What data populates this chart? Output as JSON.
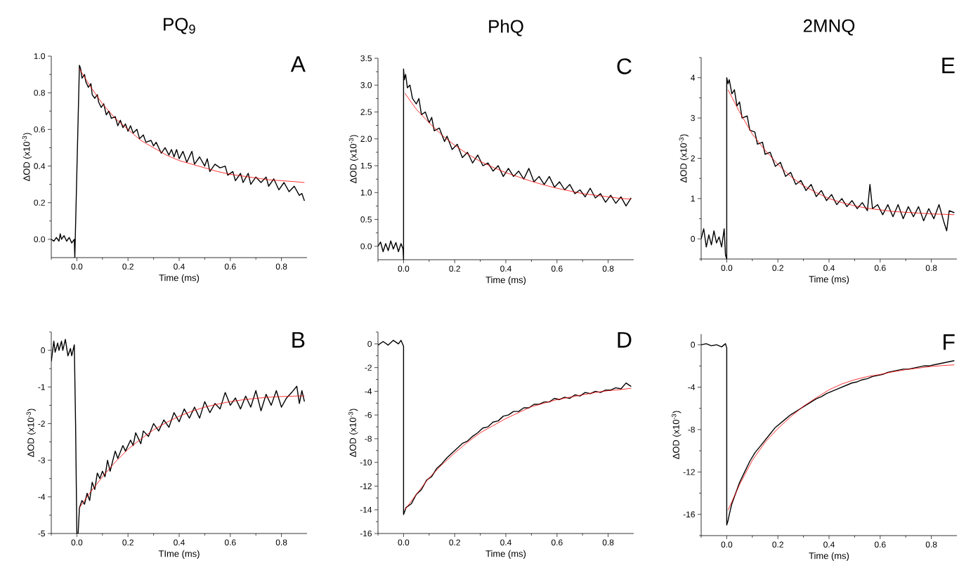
{
  "chart_data": [
    {
      "type": "line",
      "title": "PQ$_{9}$",
      "annotations": [
        "A"
      ],
      "xlabel": "Time (ms)",
      "ylabel": "ΔOD (x10$^{-3}$)",
      "marker": "none",
      "line_style": "solid",
      "xlim": [
        -0.1,
        0.9
      ],
      "ylim": [
        -0.1,
        1.0
      ],
      "xticks": [
        {
          "value": -0.1,
          "label": null
        },
        {
          "value": 0,
          "label": "0.0"
        },
        {
          "value": 0.1,
          "label": null
        },
        0.2,
        {
          "value": 0.3,
          "label": null
        },
        0.4,
        {
          "value": 0.5,
          "label": null
        },
        0.6,
        {
          "value": 0.7,
          "label": null
        },
        0.8
      ],
      "yticks": [
        {
          "value": 0,
          "label": "0.0"
        },
        {
          "value": 0.1,
          "label": null
        },
        0.2,
        {
          "value": 0.3,
          "label": null
        },
        0.4,
        {
          "value": 0.5,
          "label": null
        },
        0.6,
        {
          "value": 0.7,
          "label": null
        },
        0.8,
        {
          "value": 0.9,
          "label": null
        },
        {
          "value": 1.0,
          "label": "1.0"
        }
      ],
      "series": [
        {
          "color": "#000000",
          "x": [
            -0.1,
            -0.09,
            -0.08,
            -0.07,
            -0.065,
            -0.06,
            -0.05,
            -0.04,
            -0.03,
            -0.02,
            -0.01,
            -0.008,
            0.01,
            0.015,
            0.02,
            0.03,
            0.035,
            0.045,
            0.055,
            0.06,
            0.07,
            0.08,
            0.085,
            0.095,
            0.105,
            0.115,
            0.125,
            0.135,
            0.15,
            0.16,
            0.17,
            0.18,
            0.19,
            0.2,
            0.21,
            0.22,
            0.235,
            0.245,
            0.26,
            0.27,
            0.29,
            0.3,
            0.31,
            0.33,
            0.345,
            0.36,
            0.37,
            0.38,
            0.39,
            0.4,
            0.415,
            0.43,
            0.45,
            0.46,
            0.48,
            0.5,
            0.51,
            0.52,
            0.54,
            0.56,
            0.58,
            0.59,
            0.61,
            0.62,
            0.64,
            0.65,
            0.67,
            0.68,
            0.7,
            0.72,
            0.74,
            0.75,
            0.77,
            0.79,
            0.81,
            0.83,
            0.85,
            0.87,
            0.88,
            0.89
          ],
          "values": [
            0.0,
            -0.01,
            0.01,
            -0.01,
            0.03,
            0.0,
            0.02,
            -0.01,
            0.01,
            -0.02,
            0.0,
            -0.1,
            0.95,
            0.93,
            0.88,
            0.9,
            0.86,
            0.83,
            0.85,
            0.79,
            0.77,
            0.79,
            0.75,
            0.72,
            0.74,
            0.68,
            0.7,
            0.66,
            0.67,
            0.62,
            0.65,
            0.61,
            0.63,
            0.59,
            0.62,
            0.58,
            0.6,
            0.55,
            0.57,
            0.53,
            0.54,
            0.51,
            0.53,
            0.47,
            0.5,
            0.46,
            0.49,
            0.45,
            0.49,
            0.44,
            0.48,
            0.42,
            0.48,
            0.41,
            0.45,
            0.4,
            0.44,
            0.37,
            0.41,
            0.39,
            0.4,
            0.35,
            0.37,
            0.32,
            0.36,
            0.31,
            0.36,
            0.3,
            0.34,
            0.31,
            0.34,
            0.29,
            0.33,
            0.27,
            0.31,
            0.26,
            0.29,
            0.24,
            0.25,
            0.21
          ]
        },
        {
          "color": "#ff0000",
          "x": [
            0.01,
            0.05,
            0.1,
            0.15,
            0.2,
            0.25,
            0.3,
            0.35,
            0.4,
            0.45,
            0.5,
            0.55,
            0.6,
            0.65,
            0.7,
            0.75,
            0.8,
            0.85,
            0.89
          ],
          "values": [
            0.93,
            0.84,
            0.74,
            0.66,
            0.6,
            0.54,
            0.5,
            0.46,
            0.43,
            0.41,
            0.39,
            0.37,
            0.355,
            0.345,
            0.335,
            0.325,
            0.32,
            0.315,
            0.31
          ]
        }
      ]
    },
    {
      "type": "line",
      "title": "PhQ",
      "annotations": [
        "C"
      ],
      "xlabel": "Time (ms)",
      "ylabel": "ΔOD (x10$^{-3}$)",
      "marker": "none",
      "line_style": "solid",
      "xlim": [
        -0.1,
        0.9
      ],
      "ylim": [
        -0.25,
        3.5
      ],
      "xticks": [
        {
          "value": -0.1,
          "label": null
        },
        {
          "value": 0,
          "label": "0.0"
        },
        {
          "value": 0.1,
          "label": null
        },
        0.2,
        {
          "value": 0.3,
          "label": null
        },
        0.4,
        {
          "value": 0.5,
          "label": null
        },
        0.6,
        {
          "value": 0.7,
          "label": null
        },
        0.8
      ],
      "yticks": [
        {
          "value": 0,
          "label": "0.0"
        },
        {
          "value": 0.25,
          "label": null
        },
        0.5,
        {
          "value": 0.75,
          "label": null
        },
        {
          "value": 1.0,
          "label": "1.0"
        },
        {
          "value": 1.25,
          "label": null
        },
        1.5,
        {
          "value": 1.75,
          "label": null
        },
        {
          "value": 2.0,
          "label": "2.0"
        },
        {
          "value": 2.25,
          "label": null
        },
        2.5,
        {
          "value": 2.75,
          "label": null
        },
        {
          "value": 3.0,
          "label": "3.0"
        },
        {
          "value": 3.25,
          "label": null
        },
        3.5
      ],
      "series": [
        {
          "color": "#000000",
          "x": [
            -0.1,
            -0.09,
            -0.08,
            -0.07,
            -0.06,
            -0.05,
            -0.04,
            -0.03,
            -0.02,
            -0.01,
            -0.002,
            0,
            0,
            0.003,
            0.008,
            0.015,
            0.025,
            0.035,
            0.05,
            0.06,
            0.07,
            0.085,
            0.1,
            0.11,
            0.12,
            0.14,
            0.16,
            0.17,
            0.19,
            0.21,
            0.23,
            0.25,
            0.27,
            0.29,
            0.31,
            0.33,
            0.35,
            0.37,
            0.39,
            0.41,
            0.43,
            0.45,
            0.47,
            0.49,
            0.51,
            0.53,
            0.55,
            0.57,
            0.59,
            0.61,
            0.63,
            0.65,
            0.67,
            0.69,
            0.71,
            0.73,
            0.75,
            0.77,
            0.79,
            0.81,
            0.83,
            0.85,
            0.87,
            0.89
          ],
          "values": [
            0.0,
            0.08,
            -0.1,
            0.05,
            -0.08,
            0.1,
            -0.05,
            0.07,
            -0.1,
            0.05,
            -0.05,
            -0.25,
            3.3,
            3.1,
            3.2,
            2.95,
            3.0,
            2.75,
            2.65,
            2.75,
            2.45,
            2.5,
            2.3,
            2.4,
            2.15,
            2.2,
            1.95,
            2.05,
            1.8,
            1.9,
            1.65,
            1.75,
            1.55,
            1.7,
            1.5,
            1.55,
            1.4,
            1.5,
            1.3,
            1.45,
            1.3,
            1.4,
            1.25,
            1.45,
            1.2,
            1.3,
            1.15,
            1.3,
            1.1,
            1.2,
            1.05,
            1.15,
            0.98,
            1.05,
            0.92,
            1.08,
            0.9,
            0.98,
            0.82,
            0.95,
            0.8,
            0.92,
            0.75,
            0.9
          ]
        },
        {
          "color": "#ff0000",
          "x": [
            0.005,
            0.05,
            0.1,
            0.15,
            0.2,
            0.25,
            0.3,
            0.35,
            0.4,
            0.45,
            0.5,
            0.55,
            0.6,
            0.65,
            0.7,
            0.75,
            0.8,
            0.85,
            0.89
          ],
          "values": [
            2.85,
            2.55,
            2.3,
            2.07,
            1.88,
            1.72,
            1.58,
            1.47,
            1.37,
            1.29,
            1.21,
            1.14,
            1.08,
            1.03,
            0.98,
            0.95,
            0.92,
            0.89,
            0.88
          ]
        }
      ]
    },
    {
      "type": "line",
      "title": "2MNQ",
      "annotations": [
        "E"
      ],
      "xlabel": "Time (ms)",
      "ylabel": "ΔOD (x10$^{-3}$)",
      "marker": "none",
      "line_style": "solid",
      "xlim": [
        -0.1,
        0.9
      ],
      "ylim": [
        -0.5,
        4.5
      ],
      "xticks": [
        {
          "value": -0.1,
          "label": null
        },
        {
          "value": 0,
          "label": "0.0"
        },
        {
          "value": 0.1,
          "label": null
        },
        0.2,
        {
          "value": 0.3,
          "label": null
        },
        0.4,
        {
          "value": 0.5,
          "label": null
        },
        0.6,
        {
          "value": 0.7,
          "label": null
        },
        0.8
      ],
      "yticks": [
        {
          "value": -0.5,
          "label": null
        },
        0,
        {
          "value": 0.5,
          "label": null
        },
        1,
        {
          "value": 1.5,
          "label": null
        },
        2,
        {
          "value": 2.5,
          "label": null
        },
        3,
        {
          "value": 3.5,
          "label": null
        },
        4,
        {
          "value": 4.5,
          "label": null
        }
      ],
      "series": [
        {
          "color": "#000000",
          "x": [
            -0.1,
            -0.09,
            -0.08,
            -0.07,
            -0.06,
            -0.05,
            -0.04,
            -0.03,
            -0.02,
            -0.01,
            -0.005,
            0,
            0,
            0.005,
            0.01,
            0.02,
            0.03,
            0.04,
            0.05,
            0.06,
            0.08,
            0.09,
            0.11,
            0.12,
            0.14,
            0.15,
            0.17,
            0.19,
            0.21,
            0.23,
            0.25,
            0.27,
            0.29,
            0.31,
            0.33,
            0.35,
            0.37,
            0.39,
            0.41,
            0.43,
            0.45,
            0.47,
            0.49,
            0.51,
            0.53,
            0.55,
            0.56,
            0.57,
            0.59,
            0.61,
            0.63,
            0.65,
            0.67,
            0.69,
            0.71,
            0.73,
            0.75,
            0.77,
            0.79,
            0.81,
            0.83,
            0.85,
            0.86,
            0.87,
            0.89
          ],
          "values": [
            0.0,
            0.25,
            -0.2,
            0.1,
            -0.15,
            0.2,
            -0.1,
            0.05,
            -0.2,
            0.25,
            -0.4,
            -0.5,
            4.0,
            3.85,
            3.95,
            3.6,
            3.7,
            3.3,
            3.4,
            3.0,
            3.05,
            2.7,
            2.65,
            2.35,
            2.4,
            2.1,
            2.15,
            1.8,
            1.9,
            1.55,
            1.65,
            1.35,
            1.45,
            1.2,
            1.35,
            1.05,
            1.2,
            0.95,
            1.1,
            0.85,
            1.0,
            0.8,
            0.95,
            0.75,
            0.9,
            0.7,
            1.35,
            0.75,
            0.85,
            0.6,
            0.85,
            0.55,
            0.85,
            0.5,
            0.8,
            0.55,
            0.8,
            0.45,
            0.75,
            0.5,
            0.85,
            0.4,
            0.2,
            0.7,
            0.65
          ]
        },
        {
          "color": "#ff0000",
          "x": [
            0.005,
            0.05,
            0.1,
            0.15,
            0.2,
            0.25,
            0.3,
            0.35,
            0.4,
            0.45,
            0.5,
            0.55,
            0.6,
            0.65,
            0.7,
            0.75,
            0.8,
            0.85,
            0.89
          ],
          "values": [
            3.7,
            3.15,
            2.6,
            2.2,
            1.85,
            1.55,
            1.32,
            1.15,
            1.0,
            0.9,
            0.82,
            0.76,
            0.72,
            0.68,
            0.66,
            0.64,
            0.62,
            0.61,
            0.6
          ]
        }
      ]
    },
    {
      "type": "line",
      "annotations": [
        "B"
      ],
      "xlabel": "TIme (ms)",
      "ylabel": "ΔOD (x10$^{-3}$)",
      "marker": "none",
      "line_style": "solid",
      "xlim": [
        -0.1,
        0.9
      ],
      "ylim": [
        -5,
        0.5
      ],
      "xticks": [
        {
          "value": -0.1,
          "label": null
        },
        {
          "value": 0,
          "label": "0.0"
        },
        {
          "value": 0.1,
          "label": null
        },
        0.2,
        {
          "value": 0.3,
          "label": null
        },
        0.4,
        {
          "value": 0.5,
          "label": null
        },
        0.6,
        {
          "value": 0.7,
          "label": null
        },
        0.8
      ],
      "yticks": [
        -5,
        {
          "value": -4.5,
          "label": null
        },
        -4,
        {
          "value": -3.5,
          "label": null
        },
        -3,
        {
          "value": -2.5,
          "label": null
        },
        -2,
        {
          "value": -1.5,
          "label": null
        },
        -1,
        {
          "value": -0.5,
          "label": null
        },
        0,
        {
          "value": 0.5,
          "label": null
        }
      ],
      "series": [
        {
          "color": "#000000",
          "x": [
            -0.1,
            -0.09,
            -0.085,
            -0.075,
            -0.07,
            -0.06,
            -0.055,
            -0.045,
            -0.035,
            -0.025,
            -0.02,
            -0.01,
            -0.005,
            0,
            0.005,
            0.01,
            0.02,
            0.03,
            0.04,
            0.05,
            0.06,
            0.07,
            0.08,
            0.09,
            0.1,
            0.11,
            0.12,
            0.13,
            0.15,
            0.16,
            0.18,
            0.19,
            0.21,
            0.22,
            0.23,
            0.25,
            0.26,
            0.28,
            0.3,
            0.32,
            0.34,
            0.36,
            0.38,
            0.4,
            0.42,
            0.44,
            0.46,
            0.48,
            0.5,
            0.52,
            0.54,
            0.56,
            0.58,
            0.6,
            0.62,
            0.64,
            0.66,
            0.68,
            0.7,
            0.72,
            0.74,
            0.76,
            0.78,
            0.8,
            0.82,
            0.84,
            0.86,
            0.87,
            0.88,
            0.89
          ],
          "values": [
            -0.3,
            0.25,
            -0.05,
            0.2,
            0.0,
            0.25,
            0.0,
            0.3,
            -0.15,
            0.05,
            -0.15,
            0.15,
            -2.0,
            -5.0,
            -5.0,
            -4.3,
            -4.1,
            -4.2,
            -3.9,
            -4.1,
            -3.6,
            -3.8,
            -3.35,
            -3.5,
            -3.3,
            -3.45,
            -3.0,
            -3.3,
            -2.75,
            -2.95,
            -2.6,
            -2.75,
            -2.45,
            -2.6,
            -2.25,
            -2.55,
            -2.2,
            -2.35,
            -2.0,
            -2.2,
            -1.9,
            -2.1,
            -1.7,
            -1.95,
            -1.6,
            -1.85,
            -1.55,
            -1.85,
            -1.4,
            -1.7,
            -1.45,
            -1.6,
            -1.15,
            -1.5,
            -1.3,
            -1.6,
            -1.25,
            -1.55,
            -1.1,
            -1.65,
            -1.2,
            -1.5,
            -1.1,
            -1.55,
            -1.3,
            -1.15,
            -0.98,
            -1.45,
            -1.1,
            -1.4
          ]
        },
        {
          "color": "#ff0000",
          "x": [
            0.01,
            0.05,
            0.1,
            0.15,
            0.2,
            0.25,
            0.3,
            0.35,
            0.4,
            0.45,
            0.5,
            0.55,
            0.6,
            0.65,
            0.7,
            0.75,
            0.8,
            0.85,
            0.89
          ],
          "values": [
            -4.3,
            -3.9,
            -3.45,
            -3.05,
            -2.7,
            -2.42,
            -2.17,
            -1.97,
            -1.8,
            -1.66,
            -1.55,
            -1.47,
            -1.4,
            -1.35,
            -1.31,
            -1.28,
            -1.26,
            -1.25,
            -1.24
          ]
        }
      ]
    },
    {
      "type": "line",
      "annotations": [
        "D"
      ],
      "xlabel": "Time (ms)",
      "ylabel": "ΔOD (x10$^{-3}$)",
      "marker": "none",
      "line_style": "solid",
      "xlim": [
        -0.1,
        0.9
      ],
      "ylim": [
        -16,
        1
      ],
      "xticks": [
        {
          "value": -0.1,
          "label": null
        },
        {
          "value": 0,
          "label": "0.0"
        },
        {
          "value": 0.1,
          "label": null
        },
        0.2,
        {
          "value": 0.3,
          "label": null
        },
        0.4,
        {
          "value": 0.5,
          "label": null
        },
        0.6,
        {
          "value": 0.7,
          "label": null
        },
        0.8
      ],
      "yticks": [
        -16,
        {
          "value": -15,
          "label": null
        },
        -14,
        {
          "value": -13,
          "label": null
        },
        -12,
        {
          "value": -11,
          "label": null
        },
        -10,
        {
          "value": -9,
          "label": null
        },
        -8,
        {
          "value": -7,
          "label": null
        },
        -6,
        {
          "value": -5,
          "label": null
        },
        -4,
        {
          "value": -3,
          "label": null
        },
        -2,
        {
          "value": -1,
          "label": null
        },
        0,
        {
          "value": 1,
          "label": null
        }
      ],
      "series": [
        {
          "color": "#000000",
          "x": [
            -0.1,
            -0.08,
            -0.06,
            -0.04,
            -0.02,
            -0.01,
            0,
            0,
            0.01,
            0.03,
            0.05,
            0.07,
            0.09,
            0.11,
            0.13,
            0.15,
            0.17,
            0.19,
            0.21,
            0.23,
            0.25,
            0.27,
            0.29,
            0.31,
            0.33,
            0.35,
            0.37,
            0.39,
            0.41,
            0.43,
            0.45,
            0.47,
            0.49,
            0.51,
            0.53,
            0.55,
            0.57,
            0.59,
            0.61,
            0.63,
            0.65,
            0.67,
            0.69,
            0.71,
            0.73,
            0.75,
            0.77,
            0.79,
            0.81,
            0.83,
            0.85,
            0.87,
            0.89
          ],
          "values": [
            -0.1,
            0.2,
            -0.1,
            0.3,
            0.0,
            0.3,
            -0.2,
            -14.4,
            -13.8,
            -13.5,
            -12.7,
            -12.3,
            -11.5,
            -11.2,
            -10.5,
            -10.1,
            -9.6,
            -9.2,
            -8.8,
            -8.4,
            -8.2,
            -7.8,
            -7.5,
            -7.1,
            -7.0,
            -6.6,
            -6.5,
            -6.1,
            -6.0,
            -5.7,
            -5.7,
            -5.4,
            -5.4,
            -5.1,
            -5.1,
            -4.9,
            -4.9,
            -4.6,
            -4.7,
            -4.5,
            -4.6,
            -4.3,
            -4.4,
            -4.1,
            -4.2,
            -4.0,
            -4.1,
            -3.9,
            -3.9,
            -3.7,
            -3.8,
            -3.3,
            -3.6
          ]
        },
        {
          "color": "#ff0000",
          "x": [
            0.005,
            0.05,
            0.1,
            0.15,
            0.2,
            0.25,
            0.3,
            0.35,
            0.4,
            0.45,
            0.5,
            0.55,
            0.6,
            0.65,
            0.7,
            0.75,
            0.8,
            0.85,
            0.89
          ],
          "values": [
            -14.0,
            -12.7,
            -11.3,
            -10.2,
            -9.2,
            -8.3,
            -7.5,
            -6.9,
            -6.3,
            -5.8,
            -5.3,
            -5.0,
            -4.7,
            -4.5,
            -4.3,
            -4.1,
            -3.95,
            -3.85,
            -3.75
          ]
        }
      ]
    },
    {
      "type": "line",
      "annotations": [
        "F"
      ],
      "xlabel": "Time (ms)",
      "ylabel": "ΔOD (x10$^{-3}$)",
      "marker": "none",
      "line_style": "solid",
      "xlim": [
        -0.1,
        0.9
      ],
      "ylim": [
        -18,
        1
      ],
      "xticks": [
        {
          "value": -0.1,
          "label": null
        },
        {
          "value": 0,
          "label": "0.0"
        },
        {
          "value": 0.1,
          "label": null
        },
        0.2,
        {
          "value": 0.3,
          "label": null
        },
        0.4,
        {
          "value": 0.5,
          "label": null
        },
        0.6,
        {
          "value": 0.7,
          "label": null
        },
        0.8
      ],
      "yticks": [
        {
          "value": -18,
          "label": null
        },
        -16,
        {
          "value": -14,
          "label": null
        },
        -12,
        {
          "value": -10,
          "label": null
        },
        -8,
        {
          "value": -6,
          "label": null
        },
        -4,
        {
          "value": -2,
          "label": null
        },
        0
      ],
      "series": [
        {
          "color": "#000000",
          "x": [
            -0.1,
            -0.08,
            -0.06,
            -0.04,
            -0.02,
            -0.005,
            0,
            0,
            0.005,
            0.01,
            0.02,
            0.035,
            0.05,
            0.07,
            0.09,
            0.11,
            0.13,
            0.15,
            0.17,
            0.19,
            0.21,
            0.23,
            0.25,
            0.27,
            0.29,
            0.31,
            0.33,
            0.35,
            0.37,
            0.39,
            0.41,
            0.43,
            0.45,
            0.47,
            0.49,
            0.51,
            0.53,
            0.55,
            0.57,
            0.59,
            0.61,
            0.63,
            0.65,
            0.67,
            0.69,
            0.71,
            0.73,
            0.75,
            0.77,
            0.79,
            0.81,
            0.83,
            0.85,
            0.87,
            0.89
          ],
          "values": [
            0.0,
            0.1,
            -0.1,
            0.0,
            -0.2,
            0.1,
            -0.3,
            -17.0,
            -16.6,
            -16.0,
            -15.0,
            -14.0,
            -13.0,
            -12.0,
            -11.0,
            -10.2,
            -9.6,
            -9.0,
            -8.4,
            -7.8,
            -7.4,
            -7.0,
            -6.6,
            -6.3,
            -6.0,
            -5.7,
            -5.4,
            -5.1,
            -4.9,
            -4.6,
            -4.4,
            -4.2,
            -4.0,
            -3.8,
            -3.6,
            -3.5,
            -3.3,
            -3.2,
            -3.0,
            -2.9,
            -2.8,
            -2.6,
            -2.5,
            -2.4,
            -2.3,
            -2.3,
            -2.2,
            -2.1,
            -2.0,
            -2.0,
            -1.9,
            -1.8,
            -1.7,
            -1.6,
            -1.5
          ]
        },
        {
          "color": "#ff0000",
          "x": [
            0.005,
            0.05,
            0.1,
            0.15,
            0.2,
            0.25,
            0.3,
            0.35,
            0.4,
            0.45,
            0.5,
            0.55,
            0.6,
            0.65,
            0.7,
            0.75,
            0.8,
            0.85,
            0.89
          ],
          "values": [
            -15.6,
            -13.2,
            -10.9,
            -9.2,
            -7.9,
            -6.8,
            -5.8,
            -5.0,
            -4.25,
            -3.7,
            -3.3,
            -3.0,
            -2.8,
            -2.55,
            -2.35,
            -2.2,
            -2.05,
            -1.95,
            -1.9
          ]
        }
      ]
    }
  ]
}
